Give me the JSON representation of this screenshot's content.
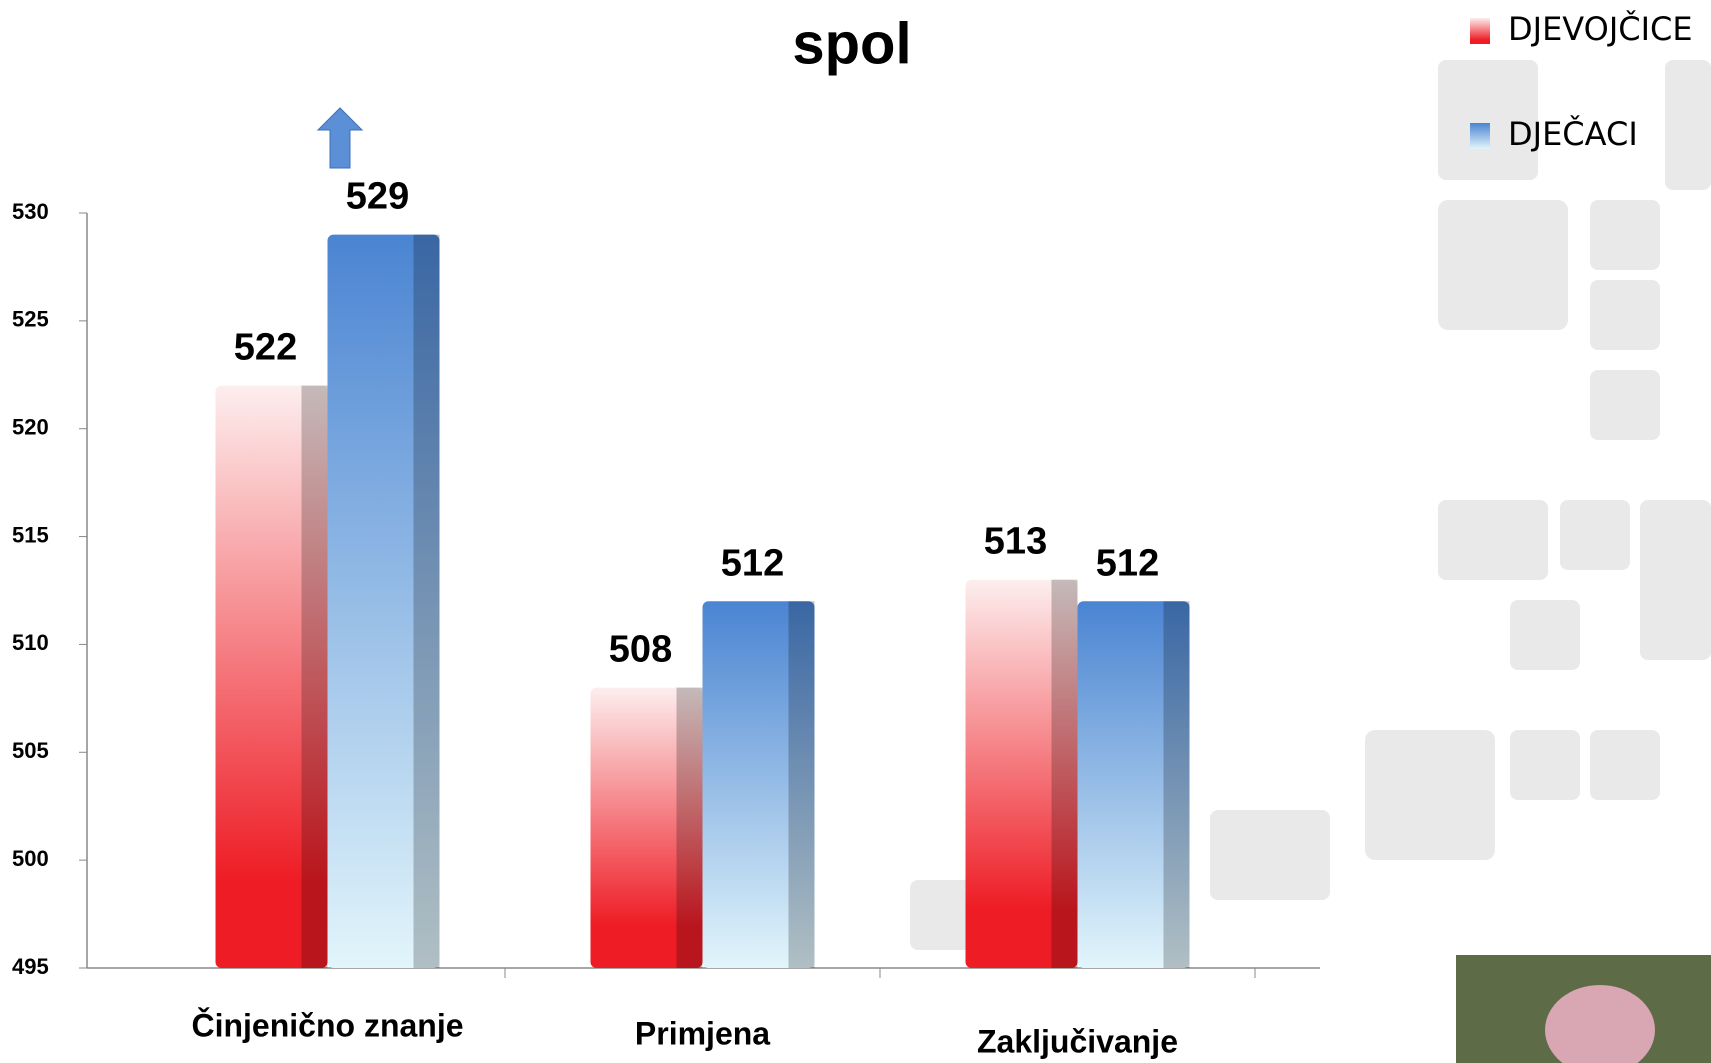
{
  "chart_data": {
    "type": "bar",
    "title": "spol",
    "categories": [
      "Činjenično znanje",
      "Primjena",
      "Zaključivanje"
    ],
    "series": [
      {
        "name": "DJEVOJČICE",
        "color": "#ee1c25",
        "values": [
          522,
          508,
          513
        ]
      },
      {
        "name": "DJEČACI",
        "color": "#4a84d2",
        "values": [
          529,
          512,
          512
        ]
      }
    ],
    "ylim": [
      495,
      530
    ],
    "yticks": [
      495,
      500,
      505,
      510,
      515,
      520,
      525,
      530
    ]
  }
}
